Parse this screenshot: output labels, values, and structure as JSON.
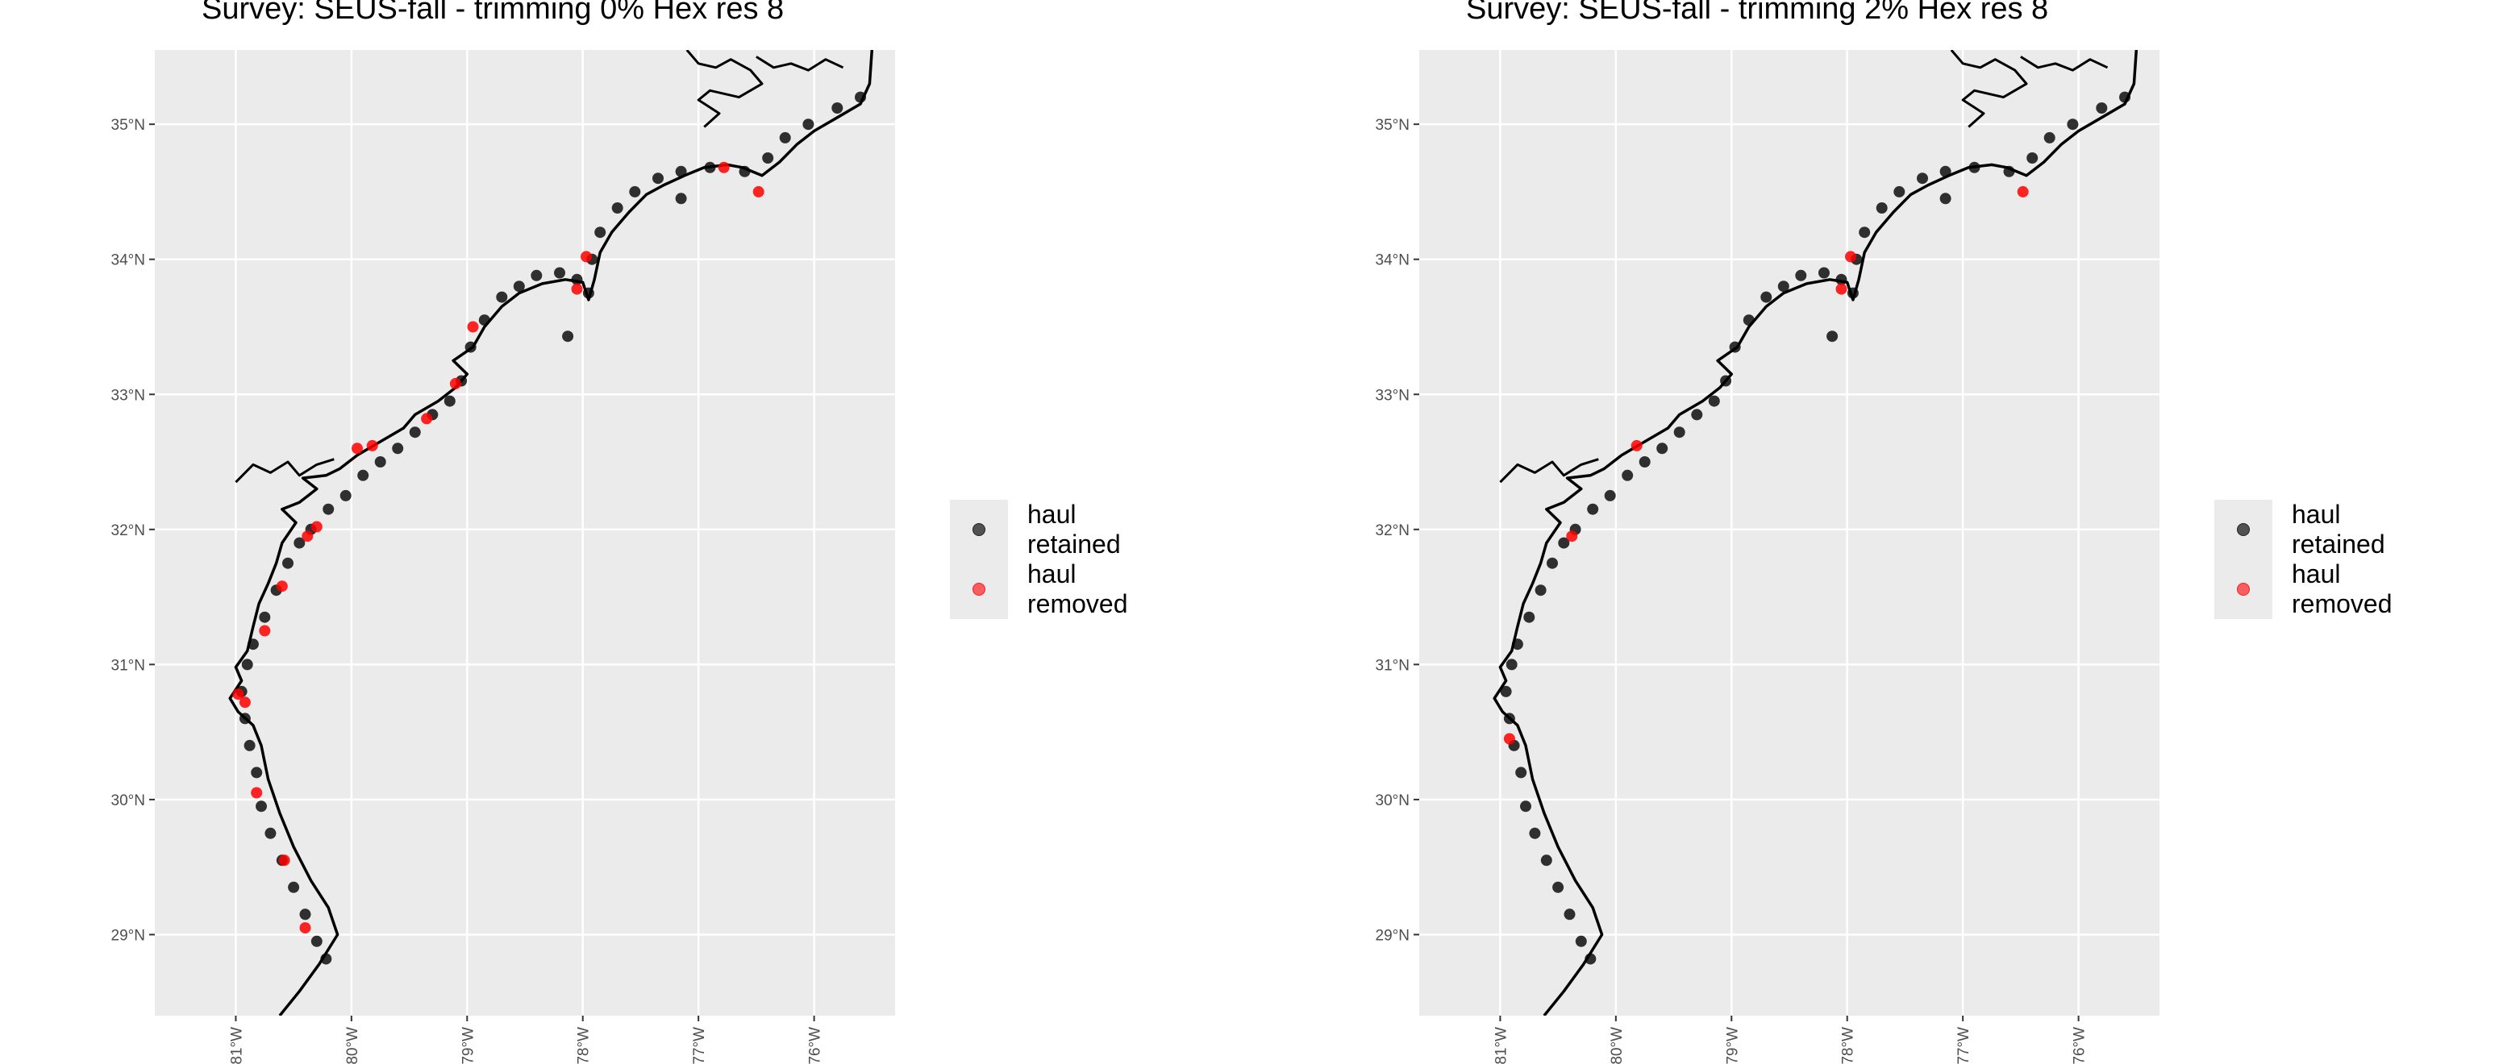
{
  "colors": {
    "panel_bg": "#ebebeb",
    "grid": "#ffffff",
    "coast": "#000000",
    "retained": "#000000",
    "removed": "#ff0000"
  },
  "legend": {
    "items": [
      {
        "label": "haul\nretained",
        "color": "#000000"
      },
      {
        "label": "haul\nremoved",
        "color": "#ff0000"
      }
    ]
  },
  "panels": [
    {
      "title": "Survey: SEUS-fall - trimming 0% Hex res 8",
      "trimming": "0%"
    },
    {
      "title": "Survey: SEUS-fall - trimming 2% Hex res 8",
      "trimming": "2%"
    }
  ],
  "chart_data": [
    {
      "type": "scatter",
      "title": "Survey: SEUS-fall - trimming 0% Hex res 8",
      "xlabel": "",
      "ylabel": "",
      "xlim": [
        -81.7,
        -75.3
      ],
      "ylim": [
        28.4,
        35.55
      ],
      "x_ticks": [
        {
          "value": -81,
          "label": "81°W"
        },
        {
          "value": -80,
          "label": "80°W"
        },
        {
          "value": -79,
          "label": "79°W"
        },
        {
          "value": -78,
          "label": "78°W"
        },
        {
          "value": -77,
          "label": "77°W"
        },
        {
          "value": -76,
          "label": "76°W"
        }
      ],
      "y_ticks": [
        {
          "value": 29,
          "label": "29°N"
        },
        {
          "value": 30,
          "label": "30°N"
        },
        {
          "value": 31,
          "label": "31°N"
        },
        {
          "value": 32,
          "label": "32°N"
        },
        {
          "value": 33,
          "label": "33°N"
        },
        {
          "value": 34,
          "label": "34°N"
        },
        {
          "value": 35,
          "label": "35°N"
        }
      ],
      "grid": true,
      "legend_position": "right",
      "series": [
        {
          "name": "haul retained",
          "color": "#000000",
          "points": [
            [
              -80.22,
              28.82
            ],
            [
              -80.3,
              28.95
            ],
            [
              -80.4,
              29.15
            ],
            [
              -80.5,
              29.35
            ],
            [
              -80.6,
              29.55
            ],
            [
              -80.7,
              29.75
            ],
            [
              -80.78,
              29.95
            ],
            [
              -80.82,
              30.2
            ],
            [
              -80.88,
              30.4
            ],
            [
              -80.92,
              30.6
            ],
            [
              -80.95,
              30.8
            ],
            [
              -80.9,
              31.0
            ],
            [
              -80.85,
              31.15
            ],
            [
              -80.75,
              31.35
            ],
            [
              -80.65,
              31.55
            ],
            [
              -80.55,
              31.75
            ],
            [
              -80.45,
              31.9
            ],
            [
              -80.35,
              32.0
            ],
            [
              -80.2,
              32.15
            ],
            [
              -80.05,
              32.25
            ],
            [
              -79.9,
              32.4
            ],
            [
              -79.75,
              32.5
            ],
            [
              -79.6,
              32.6
            ],
            [
              -79.45,
              32.72
            ],
            [
              -79.3,
              32.85
            ],
            [
              -79.15,
              32.95
            ],
            [
              -79.05,
              33.1
            ],
            [
              -78.97,
              33.35
            ],
            [
              -78.85,
              33.55
            ],
            [
              -78.7,
              33.72
            ],
            [
              -78.55,
              33.8
            ],
            [
              -78.4,
              33.88
            ],
            [
              -78.2,
              33.9
            ],
            [
              -78.05,
              33.85
            ],
            [
              -77.95,
              33.75
            ],
            [
              -77.92,
              34.0
            ],
            [
              -77.85,
              34.2
            ],
            [
              -77.7,
              34.38
            ],
            [
              -77.55,
              34.5
            ],
            [
              -77.35,
              34.6
            ],
            [
              -77.15,
              34.65
            ],
            [
              -76.9,
              34.68
            ],
            [
              -76.6,
              34.65
            ],
            [
              -76.4,
              34.75
            ],
            [
              -76.25,
              34.9
            ],
            [
              -76.05,
              35.0
            ],
            [
              -75.8,
              35.12
            ],
            [
              -75.6,
              35.2
            ],
            [
              -77.15,
              34.45
            ],
            [
              -78.13,
              33.43
            ]
          ]
        },
        {
          "name": "haul removed",
          "color": "#ff0000",
          "points": [
            [
              -76.48,
              34.5
            ],
            [
              -76.78,
              34.68
            ],
            [
              -78.05,
              33.78
            ],
            [
              -77.97,
              34.02
            ],
            [
              -78.95,
              33.5
            ],
            [
              -79.1,
              33.08
            ],
            [
              -79.82,
              32.62
            ],
            [
              -79.95,
              32.6
            ],
            [
              -80.38,
              31.95
            ],
            [
              -80.3,
              32.02
            ],
            [
              -80.92,
              30.72
            ],
            [
              -80.98,
              30.78
            ],
            [
              -80.82,
              30.05
            ],
            [
              -80.4,
              29.05
            ],
            [
              -80.58,
              29.55
            ],
            [
              -80.6,
              31.58
            ],
            [
              -80.75,
              31.25
            ],
            [
              -79.35,
              32.82
            ]
          ]
        }
      ]
    },
    {
      "type": "scatter",
      "title": "Survey: SEUS-fall - trimming 2% Hex res 8",
      "xlabel": "",
      "ylabel": "",
      "xlim": [
        -81.7,
        -75.3
      ],
      "ylim": [
        28.4,
        35.55
      ],
      "x_ticks": [
        {
          "value": -81,
          "label": "81°W"
        },
        {
          "value": -80,
          "label": "80°W"
        },
        {
          "value": -79,
          "label": "79°W"
        },
        {
          "value": -78,
          "label": "78°W"
        },
        {
          "value": -77,
          "label": "77°W"
        },
        {
          "value": -76,
          "label": "76°W"
        }
      ],
      "y_ticks": [
        {
          "value": 29,
          "label": "29°N"
        },
        {
          "value": 30,
          "label": "30°N"
        },
        {
          "value": 31,
          "label": "31°N"
        },
        {
          "value": 32,
          "label": "32°N"
        },
        {
          "value": 33,
          "label": "33°N"
        },
        {
          "value": 34,
          "label": "34°N"
        },
        {
          "value": 35,
          "label": "35°N"
        }
      ],
      "grid": true,
      "legend_position": "right",
      "series": [
        {
          "name": "haul retained",
          "color": "#000000",
          "points": [
            [
              -80.22,
              28.82
            ],
            [
              -80.3,
              28.95
            ],
            [
              -80.4,
              29.15
            ],
            [
              -80.5,
              29.35
            ],
            [
              -80.6,
              29.55
            ],
            [
              -80.7,
              29.75
            ],
            [
              -80.78,
              29.95
            ],
            [
              -80.82,
              30.2
            ],
            [
              -80.88,
              30.4
            ],
            [
              -80.92,
              30.6
            ],
            [
              -80.95,
              30.8
            ],
            [
              -80.9,
              31.0
            ],
            [
              -80.85,
              31.15
            ],
            [
              -80.75,
              31.35
            ],
            [
              -80.65,
              31.55
            ],
            [
              -80.55,
              31.75
            ],
            [
              -80.45,
              31.9
            ],
            [
              -80.35,
              32.0
            ],
            [
              -80.2,
              32.15
            ],
            [
              -80.05,
              32.25
            ],
            [
              -79.9,
              32.4
            ],
            [
              -79.75,
              32.5
            ],
            [
              -79.6,
              32.6
            ],
            [
              -79.45,
              32.72
            ],
            [
              -79.3,
              32.85
            ],
            [
              -79.15,
              32.95
            ],
            [
              -79.05,
              33.1
            ],
            [
              -78.97,
              33.35
            ],
            [
              -78.85,
              33.55
            ],
            [
              -78.7,
              33.72
            ],
            [
              -78.55,
              33.8
            ],
            [
              -78.4,
              33.88
            ],
            [
              -78.2,
              33.9
            ],
            [
              -78.05,
              33.85
            ],
            [
              -77.95,
              33.75
            ],
            [
              -77.92,
              34.0
            ],
            [
              -77.85,
              34.2
            ],
            [
              -77.7,
              34.38
            ],
            [
              -77.55,
              34.5
            ],
            [
              -77.35,
              34.6
            ],
            [
              -77.15,
              34.65
            ],
            [
              -76.9,
              34.68
            ],
            [
              -76.6,
              34.65
            ],
            [
              -76.4,
              34.75
            ],
            [
              -76.25,
              34.9
            ],
            [
              -76.05,
              35.0
            ],
            [
              -75.8,
              35.12
            ],
            [
              -75.6,
              35.2
            ],
            [
              -77.15,
              34.45
            ],
            [
              -78.13,
              33.43
            ]
          ]
        },
        {
          "name": "haul removed",
          "color": "#ff0000",
          "points": [
            [
              -76.48,
              34.5
            ],
            [
              -79.82,
              32.62
            ],
            [
              -78.05,
              33.78
            ],
            [
              -77.97,
              34.02
            ],
            [
              -80.92,
              30.45
            ],
            [
              -80.38,
              31.95
            ]
          ]
        }
      ]
    }
  ]
}
